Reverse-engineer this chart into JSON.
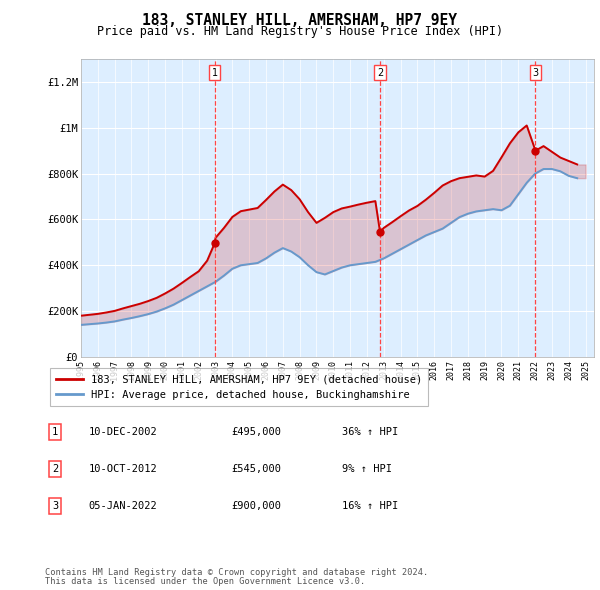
{
  "title": "183, STANLEY HILL, AMERSHAM, HP7 9EY",
  "subtitle": "Price paid vs. HM Land Registry's House Price Index (HPI)",
  "hpi_label": "HPI: Average price, detached house, Buckinghamshire",
  "property_label": "183, STANLEY HILL, AMERSHAM, HP7 9EY (detached house)",
  "footer1": "Contains HM Land Registry data © Crown copyright and database right 2024.",
  "footer2": "This data is licensed under the Open Government Licence v3.0.",
  "sales": [
    {
      "num": 1,
      "date": "10-DEC-2002",
      "price": 495000,
      "pct": "36%",
      "dir": "↑"
    },
    {
      "num": 2,
      "date": "10-OCT-2012",
      "price": 545000,
      "pct": "9%",
      "dir": "↑"
    },
    {
      "num": 3,
      "date": "05-JAN-2022",
      "price": 900000,
      "pct": "16%",
      "dir": "↑"
    }
  ],
  "sale_years": [
    2002.94,
    2012.78,
    2022.02
  ],
  "sale_prices": [
    495000,
    545000,
    900000
  ],
  "ylim": [
    0,
    1300000
  ],
  "yticks": [
    0,
    200000,
    400000,
    600000,
    800000,
    1000000,
    1200000
  ],
  "ytick_labels": [
    "£0",
    "£200K",
    "£400K",
    "£600K",
    "£800K",
    "£1M",
    "£1.2M"
  ],
  "red_color": "#cc0000",
  "blue_color": "#6699cc",
  "bg_color": "#ddeeff",
  "grid_color": "#ffffff",
  "vline_color": "#ff4444",
  "xlim_left": 1995,
  "xlim_right": 2025.5,
  "hpi_years": [
    1995,
    1995.5,
    1996,
    1996.5,
    1997,
    1997.5,
    1998,
    1998.5,
    1999,
    1999.5,
    2000,
    2000.5,
    2001,
    2001.5,
    2002,
    2002.5,
    2003,
    2003.5,
    2004,
    2004.5,
    2005,
    2005.5,
    2006,
    2006.5,
    2007,
    2007.5,
    2008,
    2008.5,
    2009,
    2009.5,
    2010,
    2010.5,
    2011,
    2011.5,
    2012,
    2012.5,
    2013,
    2013.5,
    2014,
    2014.5,
    2015,
    2015.5,
    2016,
    2016.5,
    2017,
    2017.5,
    2018,
    2018.5,
    2019,
    2019.5,
    2020,
    2020.5,
    2021,
    2021.5,
    2022,
    2022.5,
    2023,
    2023.5,
    2024,
    2024.5
  ],
  "hpi_values": [
    140000,
    143000,
    146000,
    150000,
    155000,
    163000,
    170000,
    178000,
    187000,
    198000,
    212000,
    228000,
    248000,
    268000,
    288000,
    308000,
    328000,
    355000,
    385000,
    400000,
    405000,
    410000,
    430000,
    455000,
    475000,
    460000,
    435000,
    400000,
    370000,
    360000,
    375000,
    390000,
    400000,
    405000,
    410000,
    415000,
    430000,
    450000,
    470000,
    490000,
    510000,
    530000,
    545000,
    560000,
    585000,
    610000,
    625000,
    635000,
    640000,
    645000,
    640000,
    660000,
    710000,
    760000,
    800000,
    820000,
    820000,
    810000,
    790000,
    780000
  ],
  "property_years": [
    1995,
    1995.5,
    1996,
    1996.5,
    1997,
    1997.5,
    1998,
    1998.5,
    1999,
    1999.5,
    2000,
    2000.5,
    2001,
    2001.5,
    2002,
    2002.5,
    2002.94,
    2003,
    2003.5,
    2004,
    2004.5,
    2005,
    2005.5,
    2006,
    2006.5,
    2007,
    2007.5,
    2008,
    2008.5,
    2009,
    2009.5,
    2010,
    2010.5,
    2011,
    2011.5,
    2012,
    2012.5,
    2012.78,
    2013,
    2013.5,
    2014,
    2014.5,
    2015,
    2015.5,
    2016,
    2016.5,
    2017,
    2017.5,
    2018,
    2018.5,
    2019,
    2019.5,
    2020,
    2020.5,
    2021,
    2021.5,
    2022.02,
    2022.5,
    2023,
    2023.5,
    2024,
    2024.5
  ],
  "property_values": [
    180000,
    184000,
    188000,
    194000,
    201000,
    212000,
    222000,
    232000,
    244000,
    258000,
    277000,
    298000,
    323000,
    349000,
    374000,
    420000,
    495000,
    520000,
    563000,
    611000,
    636000,
    643000,
    650000,
    685000,
    722000,
    752000,
    728000,
    688000,
    632000,
    585000,
    607000,
    632000,
    648000,
    656000,
    665000,
    673000,
    680000,
    545000,
    563000,
    588000,
    614000,
    639000,
    659000,
    686000,
    716000,
    748000,
    767000,
    780000,
    786000,
    792000,
    787000,
    812000,
    871000,
    932000,
    980000,
    1010000,
    900000,
    920000,
    895000,
    870000,
    855000,
    840000
  ]
}
